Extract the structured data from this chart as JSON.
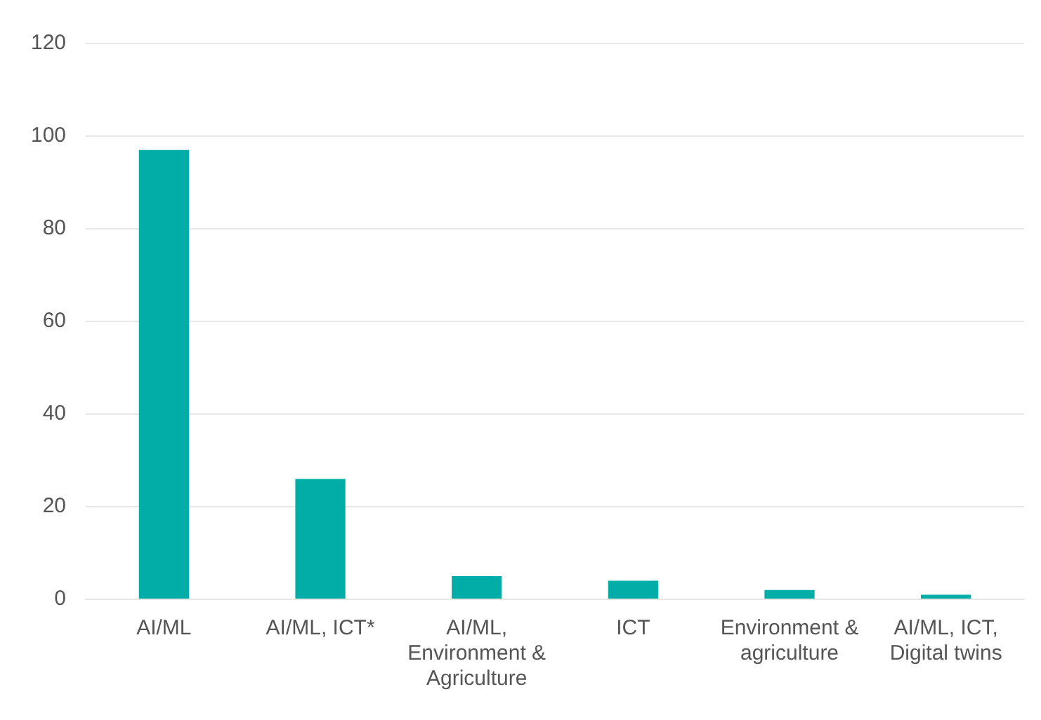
{
  "chart_data": {
    "type": "bar",
    "categories": [
      "AI/ML",
      "AI/ML, ICT*",
      "AI/ML, Environment & Agriculture",
      "ICT",
      "Environment & agriculture",
      "AI/ML, ICT, Digital twins"
    ],
    "values": [
      97,
      26,
      5,
      4,
      2,
      1
    ],
    "color": "#00ada7",
    "ylim": [
      0,
      120
    ],
    "yticks": [
      0,
      20,
      40,
      60,
      80,
      100,
      120
    ],
    "grid": "y"
  }
}
